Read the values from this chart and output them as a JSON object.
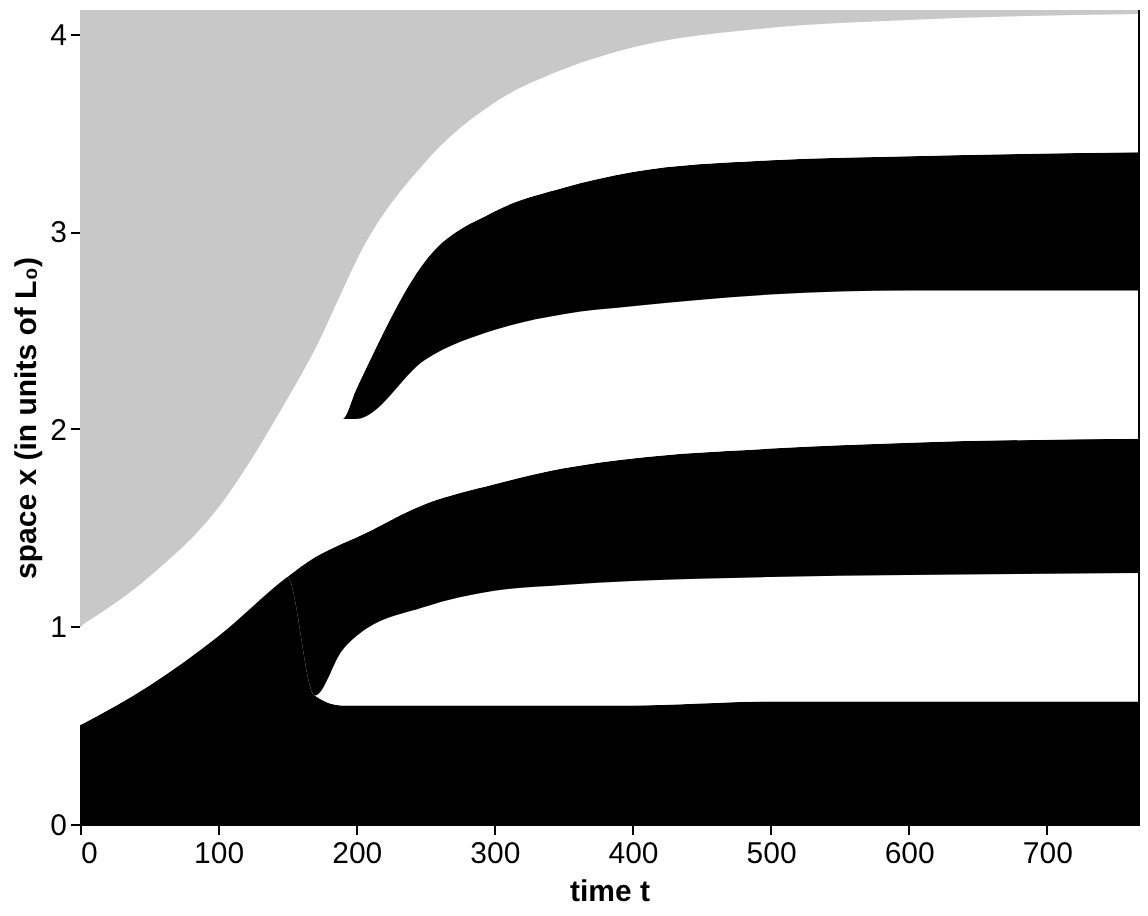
{
  "chart_data": {
    "type": "area",
    "stacked": true,
    "xlabel": "time t",
    "ylabel": "space x (in units of L₀)",
    "x": [
      0,
      50,
      100,
      150,
      170,
      190,
      200,
      250,
      300,
      350,
      400,
      500,
      600,
      766
    ],
    "xlim": [
      0,
      766
    ],
    "ylim": [
      0,
      4.12
    ],
    "xticks": [
      0,
      100,
      200,
      300,
      400,
      500,
      600,
      700
    ],
    "yticks": [
      0,
      1,
      2,
      3,
      4
    ],
    "grid": false,
    "legend": false,
    "series": [
      {
        "color": "#000000",
        "values": [
          0.5,
          0.7,
          0.95,
          1.25,
          0.65,
          0.6,
          0.6,
          0.6,
          0.6,
          0.6,
          0.6,
          0.62,
          0.62,
          0.62
        ]
      },
      {
        "color": "#ffffff",
        "values": [
          0,
          0,
          0,
          0,
          0,
          0.28,
          0.35,
          0.5,
          0.58,
          0.61,
          0.63,
          0.63,
          0.64,
          0.65
        ]
      },
      {
        "color": "#000000",
        "values": [
          0,
          0,
          0,
          0,
          0.7,
          0.54,
          0.5,
          0.52,
          0.54,
          0.59,
          0.62,
          0.65,
          0.67,
          0.68
        ]
      },
      {
        "color": "#ffffff",
        "values": [
          0.5,
          0.55,
          0.65,
          0.9,
          1.05,
          0.63,
          0.6,
          0.73,
          0.78,
          0.78,
          0.77,
          0.78,
          0.77,
          0.75
        ]
      },
      {
        "color": "#000000",
        "values": [
          0,
          0,
          0,
          0,
          0,
          0,
          0.15,
          0.5,
          0.6,
          0.64,
          0.68,
          0.68,
          0.68,
          0.7
        ]
      },
      {
        "color": "#ffffff",
        "values": [
          0,
          0,
          0,
          0,
          0,
          0.65,
          0.65,
          0.5,
          0.55,
          0.6,
          0.63,
          0.67,
          0.69,
          0.7
        ]
      },
      {
        "color": "#c8c8c8",
        "values": [
          3.12,
          2.87,
          2.52,
          1.97,
          1.72,
          1.42,
          1.27,
          0.77,
          0.47,
          0.3,
          0.19,
          0.09,
          0.05,
          0.02
        ]
      }
    ]
  }
}
